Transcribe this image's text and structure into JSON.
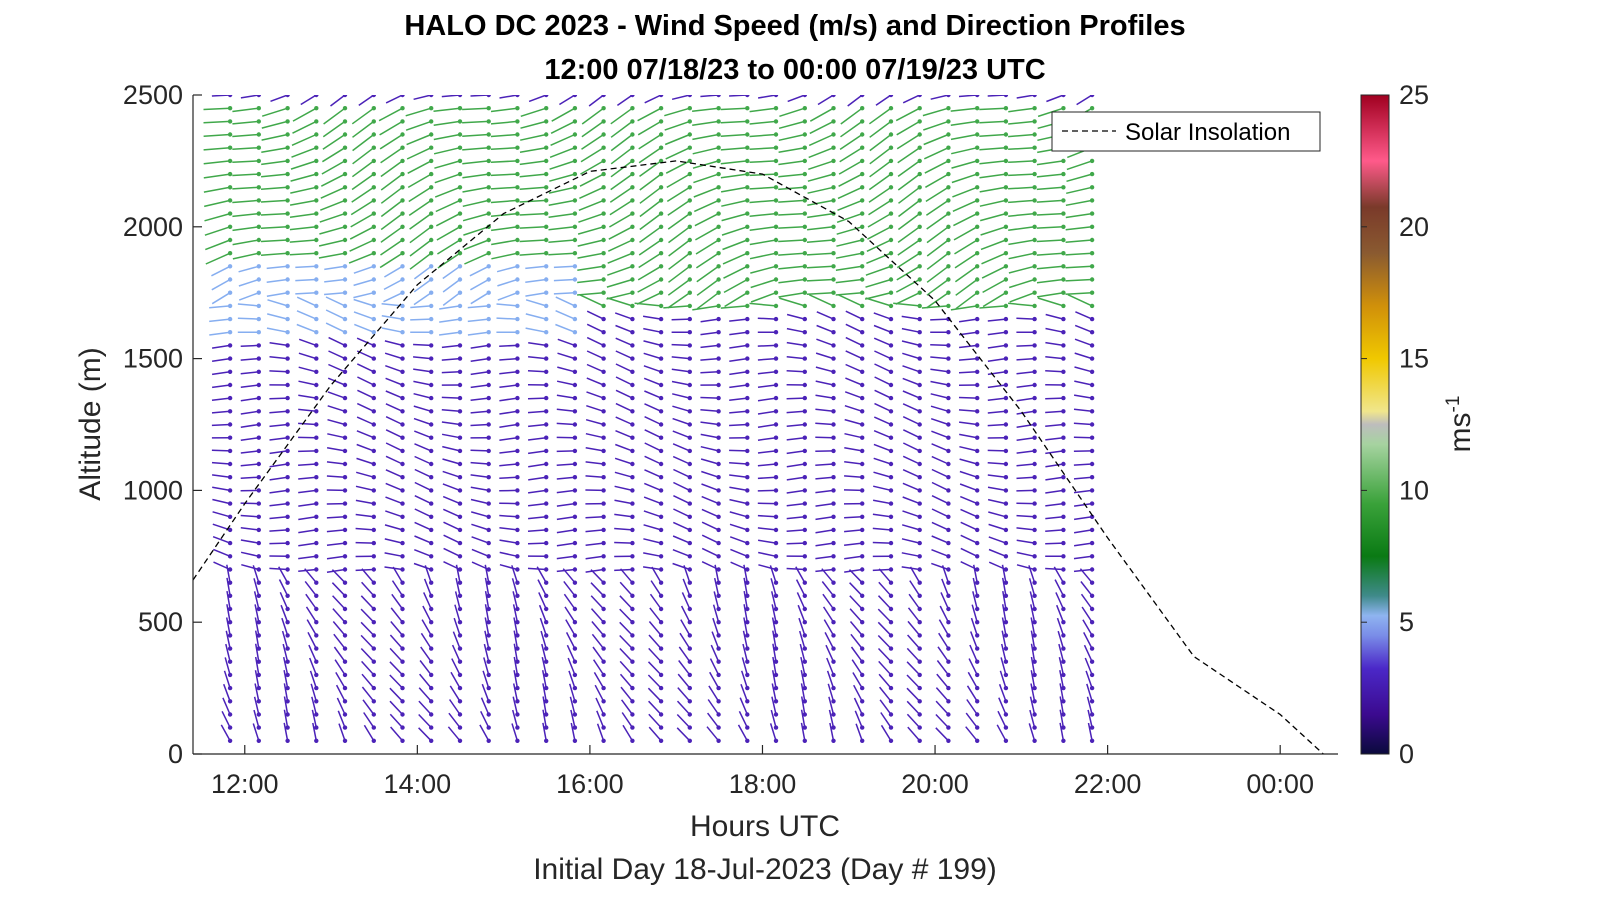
{
  "chart_data": {
    "type": "quiver",
    "title": "HALO DC 2023 - Wind Speed (m/s) and Direction Profiles",
    "subtitle": "12:00 07/18/23 to 00:00 07/19/23  UTC",
    "xlabel": "Hours UTC",
    "xlabel2": "Initial Day 18-Jul-2023 (Day # 199)",
    "ylabel": "Altitude (m)",
    "x_ticks": [
      "12:00",
      "14:00",
      "16:00",
      "18:00",
      "20:00",
      "22:00",
      "00:00"
    ],
    "x_tick_hours": [
      12,
      14,
      16,
      18,
      20,
      22,
      24
    ],
    "xlim_hours": [
      11.4,
      24.67
    ],
    "y_ticks": [
      "0",
      "500",
      "1000",
      "1500",
      "2000",
      "2500"
    ],
    "y_tick_values": [
      0,
      500,
      1000,
      1500,
      2000,
      2500
    ],
    "ylim": [
      0,
      2500
    ],
    "colorbar": {
      "label": "ms",
      "label_exponent": "-1",
      "ticks": [
        "0",
        "5",
        "10",
        "15",
        "20",
        "25"
      ],
      "tick_values": [
        0,
        5,
        10,
        15,
        20,
        25
      ],
      "range": [
        0,
        25
      ]
    },
    "legend": {
      "entries": [
        "Solar Insolation"
      ],
      "placement": "top-right",
      "style": "black dashed line"
    },
    "profile_time_range_hours": [
      11.83,
      21.83
    ],
    "profile_time_step_hours": 0.333,
    "profile_altitude_step_m": 50,
    "speed_regions": [
      {
        "t0": 11.8,
        "t1": 16.0,
        "z0": 1900,
        "z1": 2500,
        "speed": 9
      },
      {
        "t0": 16.0,
        "t1": 22.0,
        "z0": 1700,
        "z1": 2500,
        "speed": 9
      },
      {
        "t0": 11.8,
        "t1": 16.0,
        "z0": 1600,
        "z1": 1900,
        "speed": 5
      },
      {
        "t0": 11.8,
        "t1": 22.0,
        "z0": 0,
        "z1": 1600,
        "speed": 3
      }
    ],
    "solar_insolation_curve": {
      "hours": [
        11.4,
        12.0,
        13.0,
        14.0,
        15.0,
        16.0,
        17.0,
        18.0,
        19.0,
        20.0,
        21.0,
        22.0,
        23.0,
        24.0,
        24.5
      ],
      "altitude_m": [
        660,
        950,
        1400,
        1780,
        2050,
        2210,
        2250,
        2200,
        2020,
        1720,
        1300,
        820,
        370,
        150,
        0
      ]
    }
  }
}
